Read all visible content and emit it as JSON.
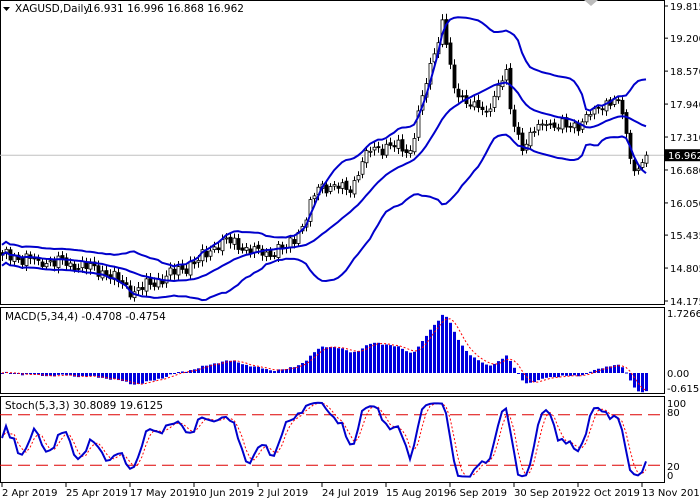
{
  "header": {
    "symbol": "XAGUSD,Daily",
    "ohlc": "16.931 16.996 16.868 16.962"
  },
  "macd_header": "MACD(5,34,4) -0.4708 -0.4754",
  "stoch_header": "Stoch(5,3,3) 30.8089 19.6125",
  "colors": {
    "bands": "#0000cc",
    "histogram": "#0000dd",
    "signal": "#ff0000",
    "stoch_main": "#0000cc",
    "stoch_signal": "#ff0000",
    "level_lines": "#dd0000",
    "price_line": "#c0c0c0",
    "candle": "#000000"
  },
  "chart_data": [
    {
      "type": "candlestick",
      "title": "XAGUSD,Daily",
      "indicator": "Bollinger Bands",
      "y_ticks": [
        "19.815",
        "19.200",
        "18.570",
        "17.940",
        "17.310",
        "16.680",
        "16.050",
        "15.435",
        "14.805",
        "14.175"
      ],
      "ylim": [
        14.175,
        19.815
      ],
      "current_price": "16.962",
      "x_ticks": [
        "2 Apr 2019",
        "25 Apr 2019",
        "17 May 2019",
        "10 Jun 2019",
        "2 Jul 2019",
        "24 Jul 2019",
        "15 Aug 2019",
        "6 Sep 2019",
        "30 Sep 2019",
        "22 Oct 2019",
        "13 Nov 2019"
      ],
      "close_keypoints": [
        {
          "date": "2019-04-02",
          "close": 15.05
        },
        {
          "date": "2019-04-15",
          "close": 14.95
        },
        {
          "date": "2019-04-25",
          "close": 14.9
        },
        {
          "date": "2019-05-07",
          "close": 14.75
        },
        {
          "date": "2019-05-17",
          "close": 14.35
        },
        {
          "date": "2019-05-29",
          "close": 14.65
        },
        {
          "date": "2019-06-10",
          "close": 14.95
        },
        {
          "date": "2019-06-18",
          "close": 15.35
        },
        {
          "date": "2019-06-26",
          "close": 15.2
        },
        {
          "date": "2019-07-02",
          "close": 15.05
        },
        {
          "date": "2019-07-10",
          "close": 15.2
        },
        {
          "date": "2019-07-16",
          "close": 15.6
        },
        {
          "date": "2019-07-22",
          "close": 16.35
        },
        {
          "date": "2019-07-26",
          "close": 16.4
        },
        {
          "date": "2019-08-01",
          "close": 16.25
        },
        {
          "date": "2019-08-07",
          "close": 17.05
        },
        {
          "date": "2019-08-15",
          "close": 17.15
        },
        {
          "date": "2019-08-22",
          "close": 17.05
        },
        {
          "date": "2019-08-27",
          "close": 18.1
        },
        {
          "date": "2019-08-30",
          "close": 18.9
        },
        {
          "date": "2019-09-03",
          "close": 19.55
        },
        {
          "date": "2019-09-05",
          "close": 18.7
        },
        {
          "date": "2019-09-06",
          "close": 18.25
        },
        {
          "date": "2019-09-12",
          "close": 17.9
        },
        {
          "date": "2019-09-18",
          "close": 17.8
        },
        {
          "date": "2019-09-23",
          "close": 18.3
        },
        {
          "date": "2019-09-25",
          "close": 18.6
        },
        {
          "date": "2019-09-26",
          "close": 17.85
        },
        {
          "date": "2019-10-01",
          "close": 17.05
        },
        {
          "date": "2019-10-03",
          "close": 17.4
        },
        {
          "date": "2019-10-09",
          "close": 17.55
        },
        {
          "date": "2019-10-16",
          "close": 17.5
        },
        {
          "date": "2019-10-22",
          "close": 17.6
        },
        {
          "date": "2019-10-25",
          "close": 17.85
        },
        {
          "date": "2019-11-01",
          "close": 18.05
        },
        {
          "date": "2019-11-05",
          "close": 17.75
        },
        {
          "date": "2019-11-07",
          "close": 16.9
        },
        {
          "date": "2019-11-11",
          "close": 16.7
        },
        {
          "date": "2019-11-13",
          "close": 16.962
        }
      ]
    },
    {
      "type": "bar",
      "title": "MACD(5,34,4) -0.4708 -0.4754",
      "y_ticks": [
        "1.7266",
        "0.00",
        "-0.6156"
      ],
      "ylim": [
        -0.6156,
        1.7266
      ],
      "last_values": {
        "macd": -0.4708,
        "signal": -0.4754
      }
    },
    {
      "type": "line",
      "title": "Stoch(5,3,3) 30.8089 19.6125",
      "y_ticks": [
        "100",
        "80",
        "20",
        "0"
      ],
      "ylim": [
        0,
        100
      ],
      "levels": [
        80,
        20
      ],
      "last_values": {
        "main": 30.8089,
        "signal": 19.6125
      }
    }
  ]
}
